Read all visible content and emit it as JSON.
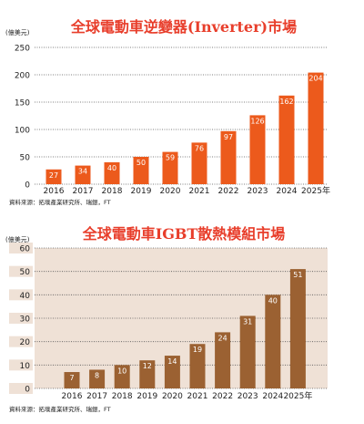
{
  "chart_data": [
    {
      "type": "bar",
      "title": "全球電動車逆變器(Inverter)市場",
      "unit": "(億美元)",
      "categories": [
        "2016",
        "2017",
        "2018",
        "2019",
        "2020",
        "2021",
        "2022",
        "2023",
        "2024",
        "2025年"
      ],
      "values": [
        27,
        34,
        40,
        50,
        59,
        76,
        97,
        126,
        162,
        204
      ],
      "data_labels": [
        "27",
        "34",
        "40",
        "50",
        "59",
        "76",
        "97",
        "126",
        "162",
        "204"
      ],
      "yticks": [
        "0",
        "50",
        "100",
        "150",
        "200",
        "250"
      ],
      "ylim": [
        0,
        250
      ],
      "grid": true,
      "source": "資料來源：拓墣產業研究所、瑞銀，FT",
      "colors": {
        "bar": "#ec5a1c",
        "title": "#e83e2b",
        "plot_bg": "#ffffff",
        "grid": "#555555",
        "tick_bg": "#ffffff"
      }
    },
    {
      "type": "bar",
      "title": "全球電動車IGBT散熱模組市場",
      "unit": "(億美元)",
      "categories": [
        "2016",
        "2017",
        "2018",
        "2019",
        "2020",
        "2021",
        "2022",
        "2023",
        "2024",
        "2025年"
      ],
      "values": [
        7,
        8,
        10,
        12,
        14,
        19,
        24,
        31,
        40,
        51
      ],
      "data_labels": [
        "7",
        "8",
        "10",
        "12",
        "14",
        "19",
        "24",
        "31",
        "40",
        "51"
      ],
      "yticks": [
        "0",
        "10",
        "20",
        "30",
        "40",
        "50",
        "60"
      ],
      "ylim": [
        0,
        60
      ],
      "grid": true,
      "source": "資料來源：拓墣產業研究所、瑞銀，FT",
      "colors": {
        "bar": "#9b6132",
        "title": "#e83e2b",
        "plot_bg": "#efe1d6",
        "grid": "#555555",
        "tick_bg": "#efe1d6"
      }
    }
  ]
}
